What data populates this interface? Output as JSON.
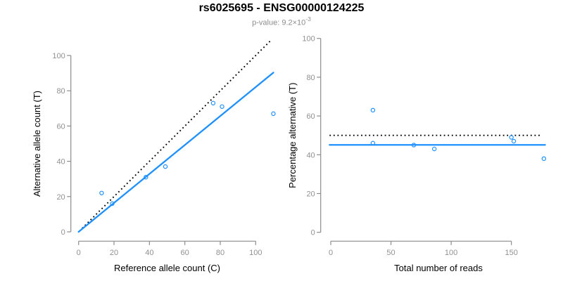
{
  "header": {
    "title": "rs6025695 - ENSG00000124225",
    "subtitle_prefix": "p-value: 9.2×10",
    "subtitle_exponent": "-3"
  },
  "colors": {
    "points": "#1E90FF",
    "fit_line": "#1E90FF",
    "reference_line": "#000000",
    "axis": "#8c8c8c",
    "tick_labels": "#919191",
    "axis_titles": "#000000",
    "title": "#000000",
    "subtitle": "#8d8d8d"
  },
  "chart_data": [
    {
      "type": "scatter",
      "panel": "allele-counts",
      "xlabel": "Reference allele count (C)",
      "ylabel": "Alternative allele count (T)",
      "x_ticks": [
        0,
        20,
        40,
        60,
        80,
        100
      ],
      "y_ticks": [
        0,
        20,
        40,
        60,
        80,
        100
      ],
      "xlim": [
        0,
        112
      ],
      "ylim": [
        0,
        112
      ],
      "grid": false,
      "legend": "none",
      "marker": "open-circle",
      "points": [
        [
          13,
          22
        ],
        [
          19,
          16
        ],
        [
          38,
          31
        ],
        [
          49,
          37
        ],
        [
          76,
          73
        ],
        [
          81,
          71
        ],
        [
          110,
          67
        ]
      ],
      "lines": [
        {
          "name": "identity",
          "style": "dotted",
          "color": "#000000",
          "x1": 2,
          "y1": 2,
          "x2": 109,
          "y2": 109
        },
        {
          "name": "fit",
          "style": "solid",
          "color": "#1E90FF",
          "x1": 0,
          "y1": 0,
          "x2": 110,
          "y2": 90.3,
          "slope": 0.82
        }
      ]
    },
    {
      "type": "scatter",
      "panel": "percentage-vs-coverage",
      "xlabel": "Total number of reads",
      "ylabel": "Percentage alternative (T)",
      "x_ticks": [
        0,
        50,
        100,
        150
      ],
      "y_ticks": [
        0,
        20,
        40,
        60,
        80,
        100
      ],
      "xlim": [
        0,
        185
      ],
      "ylim": [
        0,
        100
      ],
      "grid": false,
      "legend": "none",
      "marker": "open-circle",
      "points": [
        [
          35,
          63
        ],
        [
          35,
          46
        ],
        [
          69,
          45
        ],
        [
          86,
          43
        ],
        [
          150,
          49
        ],
        [
          152,
          47
        ],
        [
          177,
          38
        ]
      ],
      "lines": [
        {
          "name": "identity",
          "style": "dotted",
          "color": "#000000",
          "x1": -1,
          "y1": 50,
          "x2": 174.5,
          "y2": 50
        },
        {
          "name": "fit",
          "style": "solid",
          "color": "#1E90FF",
          "x1": -1,
          "y1": 45.1,
          "x2": 178,
          "y2": 45.1
        }
      ]
    }
  ]
}
